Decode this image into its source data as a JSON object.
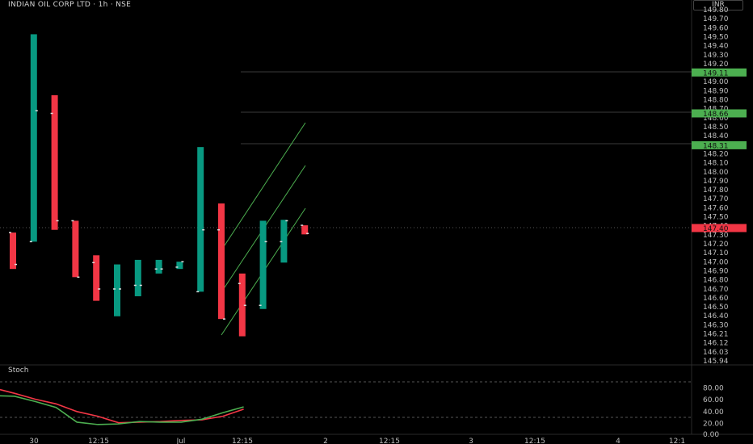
{
  "header": {
    "symbol_title": "INDIAN OIL CORP LTD · 1h · NSE",
    "currency": "INR"
  },
  "indicator": {
    "name": "Stoch"
  },
  "price_axis": {
    "labels": [
      "149.80",
      "149.70",
      "149.60",
      "149.50",
      "149.40",
      "149.30",
      "149.20",
      "149.10",
      "149.00",
      "148.90",
      "148.80",
      "148.70",
      "148.60",
      "148.50",
      "148.40",
      "148.30",
      "148.20",
      "148.10",
      "148.00",
      "147.90",
      "147.80",
      "147.70",
      "147.60",
      "147.50",
      "147.40",
      "147.30",
      "147.20",
      "147.10",
      "147.00",
      "146.90",
      "146.80",
      "146.70",
      "146.60",
      "146.50",
      "146.40",
      "146.30",
      "146.21",
      "146.12",
      "146.03",
      "145.94"
    ]
  },
  "price_tags": [
    {
      "label": "149.11",
      "value": 149.11,
      "color": "#4caf50"
    },
    {
      "label": "148.66",
      "value": 148.66,
      "color": "#4caf50"
    },
    {
      "label": "148.31",
      "value": 148.31,
      "color": "#4caf50"
    },
    {
      "label": "147.40",
      "value": 147.4,
      "color": "#f23645"
    }
  ],
  "stoch_axis": {
    "labels": [
      "80.00",
      "60.00",
      "40.00",
      "20.00",
      "0.00"
    ]
  },
  "time_axis": {
    "labels": [
      "30",
      "12:15",
      "Jul",
      "12:15",
      "2",
      "12:15",
      "3",
      "12:15",
      "4",
      "12:1"
    ]
  },
  "colors": {
    "up": "#089981",
    "down": "#f23645",
    "channel": "#4caf50",
    "stoch_k": "#4caf50",
    "stoch_d": "#f23645"
  },
  "chart_data": {
    "type": "candlestick",
    "candles": [
      {
        "open": 147.35,
        "high": 147.35,
        "low": 146.95,
        "close": 147.0
      },
      {
        "open": 147.25,
        "high": 149.53,
        "low": 147.25,
        "close": 148.69
      },
      {
        "open": 148.66,
        "high": 148.86,
        "low": 147.38,
        "close": 147.48
      },
      {
        "open": 147.48,
        "high": 147.48,
        "low": 146.86,
        "close": 146.86
      },
      {
        "open": 147.02,
        "high": 147.1,
        "low": 146.6,
        "close": 146.73
      },
      {
        "open": 146.73,
        "high": 147.0,
        "low": 146.43,
        "close": 146.73
      },
      {
        "open": 146.77,
        "high": 147.05,
        "low": 146.65,
        "close": 146.77
      },
      {
        "open": 146.95,
        "high": 147.05,
        "low": 146.9,
        "close": 146.95
      },
      {
        "open": 146.97,
        "high": 147.03,
        "low": 146.95,
        "close": 147.03
      },
      {
        "open": 146.7,
        "high": 148.29,
        "low": 146.7,
        "close": 147.38
      },
      {
        "open": 147.38,
        "high": 147.67,
        "low": 146.4,
        "close": 146.4
      },
      {
        "open": 146.79,
        "high": 146.9,
        "low": 146.21,
        "close": 146.55
      },
      {
        "open": 146.55,
        "high": 147.48,
        "low": 146.51,
        "close": 147.25
      },
      {
        "open": 147.25,
        "high": 147.49,
        "low": 147.02,
        "close": 147.48
      },
      {
        "open": 147.43,
        "high": 147.43,
        "low": 147.33,
        "close": 147.34
      }
    ],
    "price_range": [
      145.94,
      149.8
    ],
    "stoch_k": [
      67,
      66,
      57,
      47,
      22,
      18,
      19,
      23,
      22,
      22,
      27,
      38,
      48
    ],
    "stoch_d": [
      80,
      71,
      61,
      53,
      40,
      32,
      21,
      22,
      23,
      25,
      26,
      32,
      44
    ],
    "stoch_range": [
      0,
      100
    ]
  }
}
